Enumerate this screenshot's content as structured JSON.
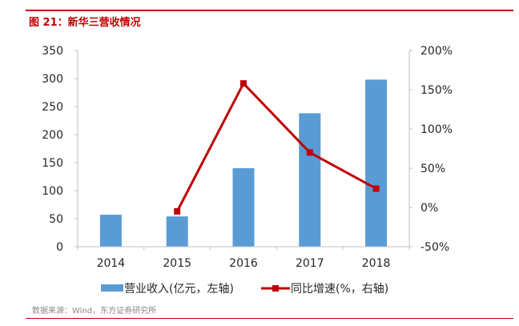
{
  "figure_title": "图 21：新华三营收情况",
  "source_note": "数据来源：Wind，东方证券研究所",
  "colors": {
    "accent_red": "#c00000",
    "bar_blue": "#5b9bd5",
    "line_red": "#c00000",
    "axis_gray": "#bfbfbf",
    "text_dark": "#262626"
  },
  "chart_data": {
    "type": "bar+line",
    "categories": [
      "2014",
      "2015",
      "2016",
      "2017",
      "2018"
    ],
    "left_axis": {
      "ylim": [
        0,
        350
      ],
      "ticks": [
        "0",
        "50",
        "100",
        "150",
        "200",
        "250",
        "300",
        "350"
      ]
    },
    "right_axis": {
      "ylim": [
        -50,
        200
      ],
      "ticks": [
        "-50%",
        "0%",
        "50%",
        "100%",
        "150%",
        "200%"
      ]
    },
    "grid": false,
    "legend_position": "bottom",
    "series": [
      {
        "name": "营业收入(亿元，左轴)",
        "type": "bar",
        "axis": "left",
        "values": [
          57,
          54,
          140,
          238,
          298
        ]
      },
      {
        "name": "同比增速(%，右轴)",
        "type": "line",
        "axis": "right",
        "values": [
          null,
          -5,
          158,
          70,
          24
        ]
      }
    ]
  }
}
